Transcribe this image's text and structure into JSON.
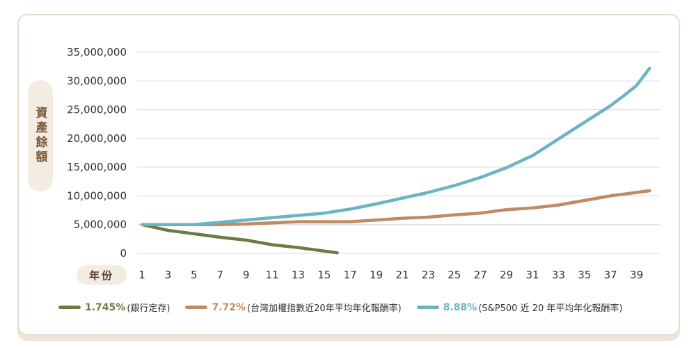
{
  "y_axis_label": "資產餘額",
  "x_axis_label": "年份",
  "chart_data": {
    "type": "line",
    "ylabel": "資產餘額",
    "xlabel": "年份",
    "ylim": [
      0,
      35000000
    ],
    "y_ticks": [
      "35,000,000",
      "30,000,000",
      "25,000,000",
      "20,000,000",
      "15,000,000",
      "10,000,000",
      "5,000,000",
      "0"
    ],
    "y_tick_values": [
      35000000,
      30000000,
      25000000,
      20000000,
      15000000,
      10000000,
      5000000,
      0
    ],
    "x_ticks": [
      "1",
      "3",
      "5",
      "7",
      "9",
      "11",
      "13",
      "15",
      "17",
      "19",
      "21",
      "23",
      "25",
      "27",
      "29",
      "31",
      "33",
      "35",
      "37",
      "39"
    ],
    "xlim": [
      1,
      40
    ],
    "grid": true,
    "legend_position": "bottom",
    "series": [
      {
        "name": "1.745%",
        "desc": "(銀行定存)",
        "color": "#6b7c41",
        "x": [
          1,
          3,
          5,
          7,
          9,
          11,
          13,
          15,
          16
        ],
        "values": [
          5000000,
          4000000,
          3400000,
          2800000,
          2300000,
          1500000,
          1000000,
          400000,
          100000
        ]
      },
      {
        "name": "7.72%",
        "desc": "(台灣加權指數近20年平均年化報酬率)",
        "color": "#c08b63",
        "x": [
          1,
          3,
          5,
          7,
          9,
          11,
          13,
          15,
          17,
          19,
          21,
          23,
          25,
          27,
          29,
          31,
          33,
          35,
          37,
          39,
          40
        ],
        "values": [
          5000000,
          5000000,
          5000000,
          5000000,
          5100000,
          5300000,
          5500000,
          5500000,
          5500000,
          5800000,
          6100000,
          6300000,
          6700000,
          7000000,
          7600000,
          7900000,
          8400000,
          9200000,
          10000000,
          10600000,
          10900000
        ]
      },
      {
        "name": "8.88%",
        "desc": "(S&P500 近 20 年平均年化報酬率)",
        "color": "#6cb4c4",
        "x": [
          1,
          3,
          5,
          7,
          9,
          11,
          13,
          15,
          17,
          19,
          21,
          23,
          25,
          27,
          29,
          31,
          33,
          35,
          37,
          38,
          39,
          40
        ],
        "values": [
          5000000,
          5000000,
          5000000,
          5400000,
          5800000,
          6200000,
          6600000,
          7000000,
          7700000,
          8600000,
          9600000,
          10600000,
          11800000,
          13200000,
          14900000,
          17000000,
          19900000,
          22800000,
          25700000,
          27400000,
          29200000,
          32200000
        ]
      }
    ]
  }
}
